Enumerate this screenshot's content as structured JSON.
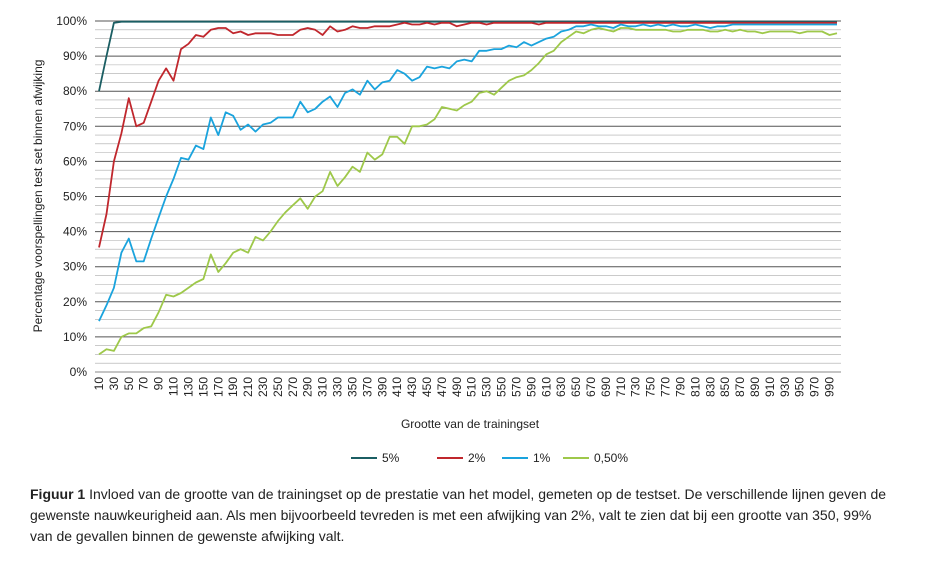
{
  "chart_data": {
    "type": "line",
    "xlabel": "Grootte van de trainingset",
    "ylabel": "Percentage voorspellingen test set binnen afwijking",
    "ylim": [
      0,
      100
    ],
    "y_ticks": [
      "0%",
      "10%",
      "20%",
      "30%",
      "40%",
      "50%",
      "60%",
      "70%",
      "80%",
      "90%",
      "100%"
    ],
    "grid": "horizontal",
    "legend_position": "bottom",
    "x": [
      10,
      20,
      30,
      40,
      50,
      60,
      70,
      80,
      90,
      100,
      110,
      120,
      130,
      140,
      150,
      160,
      170,
      180,
      190,
      200,
      210,
      220,
      230,
      240,
      250,
      260,
      270,
      280,
      290,
      300,
      310,
      320,
      330,
      340,
      350,
      360,
      370,
      380,
      390,
      400,
      410,
      420,
      430,
      440,
      450,
      460,
      470,
      480,
      490,
      500,
      510,
      520,
      530,
      540,
      550,
      560,
      570,
      580,
      590,
      600,
      610,
      620,
      630,
      640,
      650,
      660,
      670,
      680,
      690,
      700,
      710,
      720,
      730,
      740,
      750,
      760,
      770,
      780,
      790,
      800,
      810,
      820,
      830,
      840,
      850,
      860,
      870,
      880,
      890,
      900,
      910,
      920,
      930,
      940,
      950,
      960,
      970,
      980,
      990,
      1000
    ],
    "x_tick_labels": [
      "10",
      "30",
      "50",
      "70",
      "90",
      "110",
      "130",
      "150",
      "170",
      "190",
      "210",
      "230",
      "250",
      "270",
      "290",
      "310",
      "330",
      "350",
      "370",
      "390",
      "410",
      "430",
      "450",
      "470",
      "490",
      "510",
      "530",
      "550",
      "570",
      "590",
      "610",
      "630",
      "650",
      "670",
      "690",
      "710",
      "730",
      "750",
      "770",
      "790",
      "810",
      "830",
      "850",
      "870",
      "890",
      "910",
      "930",
      "950",
      "970",
      "990"
    ],
    "series": [
      {
        "name": "5%",
        "color": "#1b5e63",
        "values": [
          80,
          90,
          99.5,
          99.8,
          99.8,
          99.8,
          99.8,
          99.8,
          99.8,
          99.8,
          99.8,
          99.8,
          99.8,
          99.8,
          99.8,
          99.8,
          99.8,
          99.8,
          99.8,
          99.8,
          99.8,
          99.8,
          99.8,
          99.8,
          99.8,
          99.8,
          99.8,
          99.8,
          99.8,
          99.8,
          99.8,
          99.8,
          99.8,
          99.8,
          99.8,
          99.8,
          99.8,
          99.8,
          99.8,
          99.8,
          99.8,
          99.8,
          99.8,
          99.8,
          99.8,
          99.8,
          99.8,
          99.8,
          99.8,
          99.8,
          99.8,
          99.8,
          99.8,
          99.8,
          99.8,
          99.8,
          99.8,
          99.8,
          99.8,
          99.8,
          99.8,
          99.8,
          99.8,
          99.8,
          99.8,
          99.8,
          99.8,
          99.8,
          99.8,
          99.8,
          99.8,
          99.8,
          99.8,
          99.8,
          99.8,
          99.8,
          99.8,
          99.8,
          99.8,
          99.8,
          99.8,
          99.8,
          99.8,
          99.8,
          99.8,
          99.8,
          99.8,
          99.8,
          99.8,
          99.8,
          99.8,
          99.8,
          99.8,
          99.8,
          99.8,
          99.8,
          99.8,
          99.8,
          99.8,
          99.8
        ]
      },
      {
        "name": "2%",
        "color": "#c0272d",
        "values": [
          35.5,
          45,
          60,
          68,
          78,
          70,
          71,
          77,
          83,
          86.5,
          83,
          92,
          93.5,
          96,
          95.5,
          97.5,
          98,
          98,
          96.5,
          97,
          96,
          96.5,
          96.5,
          96.5,
          96,
          96,
          96,
          97.5,
          98,
          97.5,
          96,
          98.5,
          97,
          97.5,
          98.5,
          98,
          98,
          98.5,
          98.5,
          98.5,
          99,
          99.5,
          99,
          99,
          99.5,
          99,
          99.5,
          99.5,
          98.5,
          99,
          99.5,
          99.5,
          99,
          99.5,
          99.5,
          99.5,
          99.5,
          99.5,
          99.5,
          99,
          99.5,
          99.5,
          99.5,
          99.5,
          99.5,
          99.5,
          99.5,
          99.5,
          99.5,
          99.5,
          99.5,
          99.5,
          99.5,
          99.5,
          99.5,
          99.5,
          99.5,
          99.5,
          99.5,
          99.5,
          99.5,
          99.5,
          99.5,
          99.5,
          99.5,
          99.5,
          99.5,
          99.5,
          99.5,
          99.5,
          99.5,
          99.5,
          99.5,
          99.5,
          99.5,
          99.5,
          99.5,
          99.5,
          99.5,
          99.5
        ]
      },
      {
        "name": "1%",
        "color": "#1aa3dd",
        "values": [
          14.5,
          19,
          24,
          34,
          38,
          31.5,
          31.5,
          38,
          44,
          50,
          55,
          61,
          60.5,
          64.5,
          63.5,
          72.5,
          67.5,
          74,
          73,
          69,
          70.5,
          68.5,
          70.5,
          71,
          72.5,
          72.5,
          72.5,
          77,
          74,
          75,
          77,
          78.5,
          75.5,
          79.5,
          80.5,
          79,
          83,
          80.5,
          82.5,
          83,
          86,
          85,
          83,
          84,
          87,
          86.5,
          87,
          86.5,
          88.5,
          89,
          88.5,
          91.5,
          91.5,
          92,
          92,
          93,
          92.5,
          94,
          93,
          94,
          95,
          95.5,
          97,
          97.5,
          98.5,
          98.5,
          99,
          98.5,
          98.5,
          98,
          99,
          98.5,
          98.5,
          99,
          98.5,
          99,
          98.5,
          99,
          98.5,
          98.5,
          99,
          98.5,
          98,
          98.5,
          98.5,
          99,
          99,
          99,
          99,
          99,
          99,
          99,
          99,
          99,
          99,
          99,
          99,
          99,
          99,
          99
        ]
      },
      {
        "name": "0,50%",
        "color": "#9ec84a",
        "values": [
          5,
          6.5,
          6,
          10,
          11,
          11,
          12.5,
          13,
          17,
          22,
          21.5,
          22.5,
          24,
          25.5,
          26.5,
          33.5,
          28.5,
          31,
          34,
          35,
          34,
          38.5,
          37.5,
          40,
          43,
          45.5,
          47.5,
          49.5,
          46.5,
          50,
          51.5,
          57,
          53,
          55.5,
          58.5,
          57,
          62.5,
          60.5,
          62,
          67,
          67,
          65,
          70,
          70,
          70.5,
          72,
          75.5,
          75,
          74.5,
          76,
          77,
          79.5,
          80,
          79,
          81,
          83,
          84,
          84.5,
          86,
          88,
          90.5,
          91.5,
          94,
          95.5,
          97,
          96.5,
          97.5,
          98,
          97.5,
          97,
          98,
          98,
          97.5,
          97.5,
          97.5,
          97.5,
          97.5,
          97,
          97,
          97.5,
          97.5,
          97.5,
          97,
          97,
          97.5,
          97,
          97.5,
          97,
          97,
          96.5,
          97,
          97,
          97,
          97,
          96.5,
          97,
          97,
          97,
          96,
          96.5
        ]
      }
    ]
  },
  "caption": {
    "label": "Figuur 1",
    "text": " Invloed van de grootte van de trainingset op de prestatie van het model, gemeten op de testset. De verschillende lijnen geven de gewenste nauwkeurigheid aan. Als men bijvoorbeeld tevreden is met een afwijking van 2%, valt te zien dat bij een grootte van 350, 99% van de gevallen binnen de gewenste afwijking valt."
  }
}
